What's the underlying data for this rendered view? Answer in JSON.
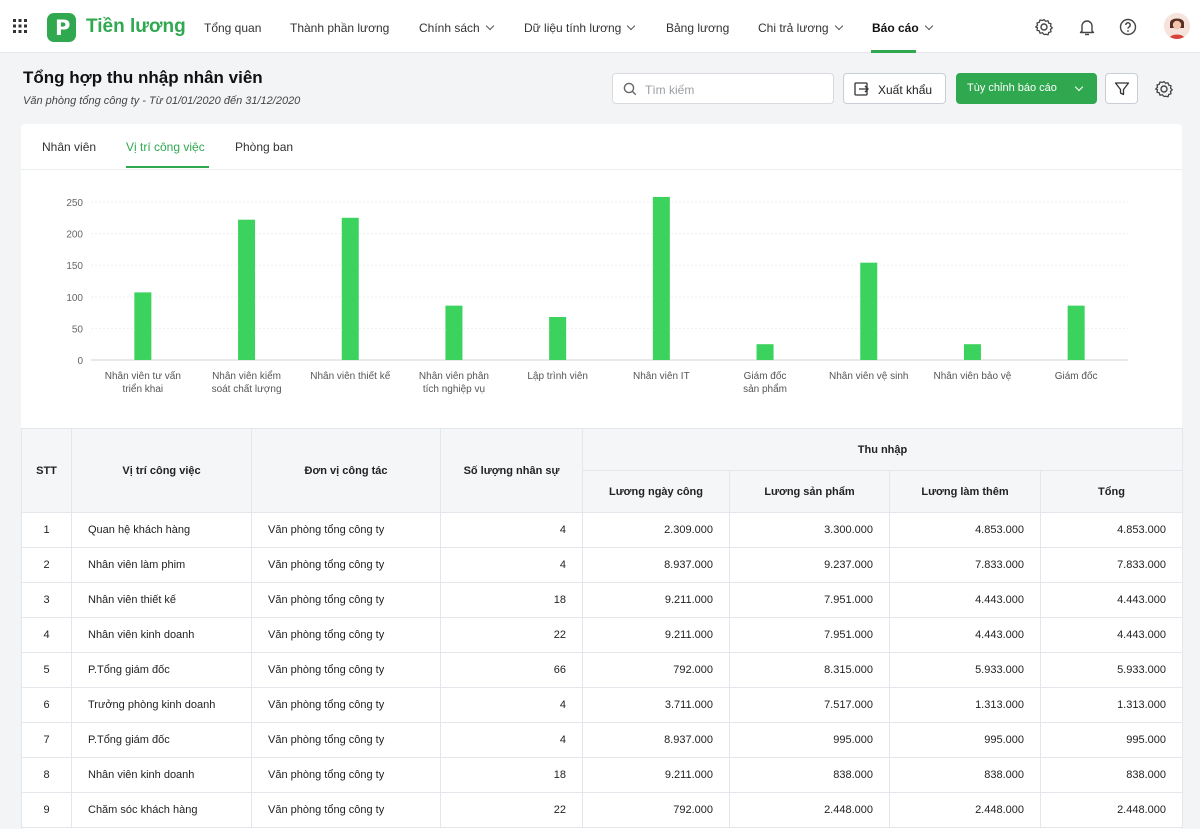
{
  "app": {
    "name": "Tiền lương",
    "logo_letter": "P"
  },
  "nav": {
    "items": [
      {
        "label": "Tổng quan"
      },
      {
        "label": "Thành phần lương"
      },
      {
        "label": "Chính sách"
      },
      {
        "label": "Dữ liệu tính lương"
      },
      {
        "label": "Bảng lương"
      },
      {
        "label": "Chi trả lương"
      },
      {
        "label": "Báo cáo"
      }
    ],
    "active": "Báo cáo"
  },
  "page": {
    "title": "Tổng hợp thu nhập nhân viên",
    "subtitle": "Văn phòng tổng công ty - Từ 01/01/2020 đến 31/12/2020"
  },
  "toolbar": {
    "search_placeholder": "Tìm kiếm",
    "export_label": "Xuất khẩu",
    "customize_label": "Tùy chỉnh báo cáo"
  },
  "tabs": [
    {
      "label": "Nhân viên"
    },
    {
      "label": "Vị trí công việc"
    },
    {
      "label": "Phòng ban"
    }
  ],
  "colors": {
    "accent": "#2fa84f",
    "bar": "#3cd25e"
  },
  "chart_data": {
    "type": "bar",
    "categories": [
      [
        "Nhân viên tư vấn",
        "triển khai"
      ],
      [
        "Nhân viên kiểm",
        "soát chất lượng"
      ],
      [
        "Nhân viên thiết kế"
      ],
      [
        "Nhân viên phân",
        "tích nghiệp vụ"
      ],
      [
        "Lập trình viên"
      ],
      [
        "Nhân viên IT"
      ],
      [
        "Giám đốc",
        "sản phẩm"
      ],
      [
        "Nhân viên vệ sinh"
      ],
      [
        "Nhân viên bảo vệ"
      ],
      [
        "Giám đốc"
      ]
    ],
    "values": [
      107,
      222,
      225,
      86,
      68,
      258,
      25,
      154,
      25,
      86
    ],
    "yticks": [
      0,
      50,
      100,
      150,
      200,
      250
    ],
    "ylim": [
      0,
      250
    ],
    "grid": true
  },
  "table": {
    "headers": {
      "stt": "STT",
      "position": "Vị trí công việc",
      "unit": "Đơn vị công tác",
      "count": "Số lượng nhân sự",
      "income": "Thu nhập",
      "day_pay": "Lương ngày công",
      "product_pay": "Lương sản phẩm",
      "overtime_pay": "Lương làm thêm",
      "total": "Tổng"
    },
    "rows": [
      [
        "1",
        "Quan hệ khách hàng",
        "Văn phòng tổng công ty",
        "4",
        "2.309.000",
        "3.300.000",
        "4.853.000",
        "4.853.000"
      ],
      [
        "2",
        "Nhân viên làm phim",
        "Văn phòng tổng công ty",
        "4",
        "8.937.000",
        "9.237.000",
        "7.833.000",
        "7.833.000"
      ],
      [
        "3",
        "Nhân viên thiết kế",
        "Văn phòng tổng công ty",
        "18",
        "9.211.000",
        "7.951.000",
        "4.443.000",
        "4.443.000"
      ],
      [
        "4",
        "Nhân viên kinh doanh",
        "Văn phòng tổng công ty",
        "22",
        "9.211.000",
        "7.951.000",
        "4.443.000",
        "4.443.000"
      ],
      [
        "5",
        "P.Tổng giám đốc",
        "Văn phòng tổng công ty",
        "66",
        "792.000",
        "8.315.000",
        "5.933.000",
        "5.933.000"
      ],
      [
        "6",
        "Trưởng phòng kinh doanh",
        "Văn phòng tổng công ty",
        "4",
        "3.711.000",
        "7.517.000",
        "1.313.000",
        "1.313.000"
      ],
      [
        "7",
        "P.Tổng giám đốc",
        "Văn phòng tổng công ty",
        "4",
        "8.937.000",
        "995.000",
        "995.000",
        "995.000"
      ],
      [
        "8",
        "Nhân viên kinh doanh",
        "Văn phòng tổng công ty",
        "18",
        "9.211.000",
        "838.000",
        "838.000",
        "838.000"
      ],
      [
        "9",
        "Chăm sóc khách hàng",
        "Văn phòng tổng công ty",
        "22",
        "792.000",
        "2.448.000",
        "2.448.000",
        "2.448.000"
      ]
    ]
  }
}
